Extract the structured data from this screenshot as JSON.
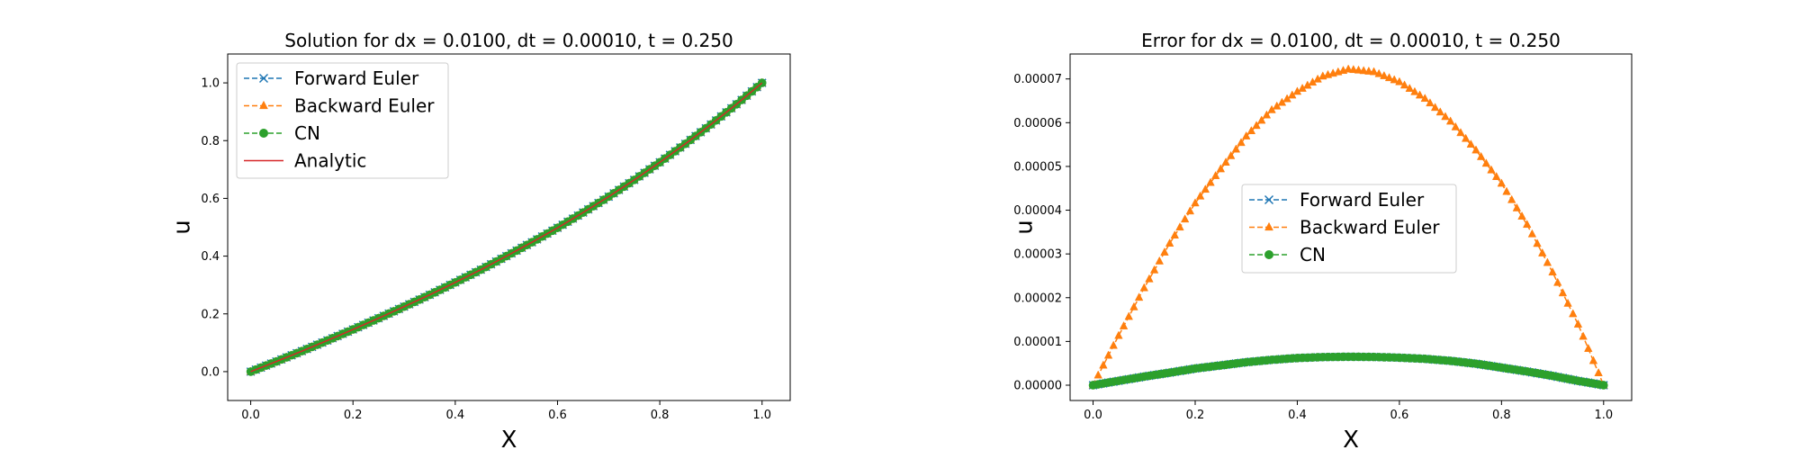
{
  "chart_data": [
    {
      "type": "line",
      "title": "Solution for dx = 0.0100, dt = 0.00010, t = 0.250",
      "xlabel": "X",
      "ylabel": "u",
      "xlim": [
        -0.045,
        1.055
      ],
      "ylim": [
        -0.1,
        1.1
      ],
      "xticks": [
        0.0,
        0.2,
        0.4,
        0.6,
        0.8,
        1.0
      ],
      "xtick_labels": [
        "0.0",
        "0.2",
        "0.4",
        "0.6",
        "0.8",
        "1.0"
      ],
      "yticks": [
        0.0,
        0.2,
        0.4,
        0.6,
        0.8,
        1.0
      ],
      "ytick_labels": [
        "0.0",
        "0.2",
        "0.4",
        "0.6",
        "0.8",
        "1.0"
      ],
      "grid": false,
      "legend_position": "upper-left",
      "x": [
        0.0,
        0.05,
        0.1,
        0.15,
        0.2,
        0.25,
        0.3,
        0.35,
        0.4,
        0.45,
        0.5,
        0.55,
        0.6,
        0.65,
        0.7,
        0.75,
        0.8,
        0.85,
        0.9,
        0.95,
        1.0
      ],
      "series": [
        {
          "name": "Forward Euler",
          "color": "#1f77b4",
          "linestyle": "dashed",
          "marker": "x",
          "values": [
            0.0,
            0.035,
            0.071,
            0.108,
            0.146,
            0.185,
            0.225,
            0.266,
            0.309,
            0.353,
            0.4,
            0.448,
            0.498,
            0.551,
            0.606,
            0.664,
            0.725,
            0.789,
            0.856,
            0.926,
            1.0
          ]
        },
        {
          "name": "Backward Euler",
          "color": "#ff7f0e",
          "linestyle": "dashed",
          "marker": "triangle",
          "values": [
            0.0,
            0.035,
            0.071,
            0.108,
            0.146,
            0.185,
            0.225,
            0.266,
            0.309,
            0.353,
            0.4,
            0.448,
            0.498,
            0.551,
            0.606,
            0.664,
            0.725,
            0.789,
            0.856,
            0.926,
            1.0
          ]
        },
        {
          "name": "CN",
          "color": "#2ca02c",
          "linestyle": "dashed",
          "marker": "circle",
          "values": [
            0.0,
            0.035,
            0.071,
            0.108,
            0.146,
            0.185,
            0.225,
            0.266,
            0.309,
            0.353,
            0.4,
            0.448,
            0.498,
            0.551,
            0.606,
            0.664,
            0.725,
            0.789,
            0.856,
            0.926,
            1.0
          ]
        },
        {
          "name": "Analytic",
          "color": "#d62728",
          "linestyle": "solid",
          "marker": "none",
          "values": [
            0.0,
            0.035,
            0.071,
            0.108,
            0.146,
            0.185,
            0.225,
            0.266,
            0.309,
            0.353,
            0.4,
            0.448,
            0.498,
            0.551,
            0.606,
            0.664,
            0.725,
            0.789,
            0.856,
            0.926,
            1.0
          ]
        }
      ]
    },
    {
      "type": "line",
      "title": "Error for dx = 0.0100, dt = 0.00010, t = 0.250",
      "xlabel": "X",
      "ylabel": "u",
      "xlim": [
        -0.045,
        1.055
      ],
      "ylim": [
        -3.5e-06,
        7.57e-05
      ],
      "xticks": [
        0.0,
        0.2,
        0.4,
        0.6,
        0.8,
        1.0
      ],
      "xtick_labels": [
        "0.0",
        "0.2",
        "0.4",
        "0.6",
        "0.8",
        "1.0"
      ],
      "yticks": [
        0.0,
        1e-05,
        2e-05,
        3e-05,
        4e-05,
        5e-05,
        6e-05,
        7e-05
      ],
      "ytick_labels": [
        "0.00000",
        "0.00001",
        "0.00002",
        "0.00003",
        "0.00004",
        "0.00005",
        "0.00006",
        "0.00007"
      ],
      "grid": false,
      "legend_position": "center",
      "x": [
        0.0,
        0.05,
        0.1,
        0.15,
        0.2,
        0.25,
        0.3,
        0.35,
        0.4,
        0.45,
        0.5,
        0.55,
        0.6,
        0.65,
        0.7,
        0.75,
        0.8,
        0.85,
        0.9,
        0.95,
        1.0
      ],
      "series": [
        {
          "name": "Forward Euler",
          "color": "#1f77b4",
          "linestyle": "dashed",
          "marker": "x",
          "values": [
            0.0,
            9.9e-07,
            1.97e-06,
            2.86e-06,
            3.81e-06,
            4.52e-06,
            5.26e-06,
            5.8e-06,
            6.21e-06,
            6.42e-06,
            6.5e-06,
            6.45e-06,
            6.29e-06,
            6.02e-06,
            5.56e-06,
            4.91e-06,
            4.02e-06,
            3.13e-06,
            2.12e-06,
            9.9e-07,
            0.0
          ]
        },
        {
          "name": "Backward Euler",
          "color": "#ff7f0e",
          "linestyle": "dashed",
          "marker": "triangle",
          "values": [
            0.0,
            1.13e-05,
            2.22e-05,
            3.24e-05,
            4.16e-05,
            4.94e-05,
            5.69e-05,
            6.29e-05,
            6.71e-05,
            7.06e-05,
            7.22e-05,
            7.16e-05,
            6.93e-05,
            6.55e-05,
            6.03e-05,
            5.37e-05,
            4.61e-05,
            3.67e-05,
            2.58e-05,
            1.39e-05,
            0.0
          ]
        },
        {
          "name": "CN",
          "color": "#2ca02c",
          "linestyle": "dashed",
          "marker": "circle",
          "values": [
            0.0,
            9.9e-07,
            1.97e-06,
            2.86e-06,
            3.81e-06,
            4.52e-06,
            5.26e-06,
            5.8e-06,
            6.21e-06,
            6.42e-06,
            6.5e-06,
            6.45e-06,
            6.29e-06,
            6.02e-06,
            5.56e-06,
            4.91e-06,
            4.02e-06,
            3.13e-06,
            2.12e-06,
            9.9e-07,
            0.0
          ]
        }
      ]
    }
  ]
}
